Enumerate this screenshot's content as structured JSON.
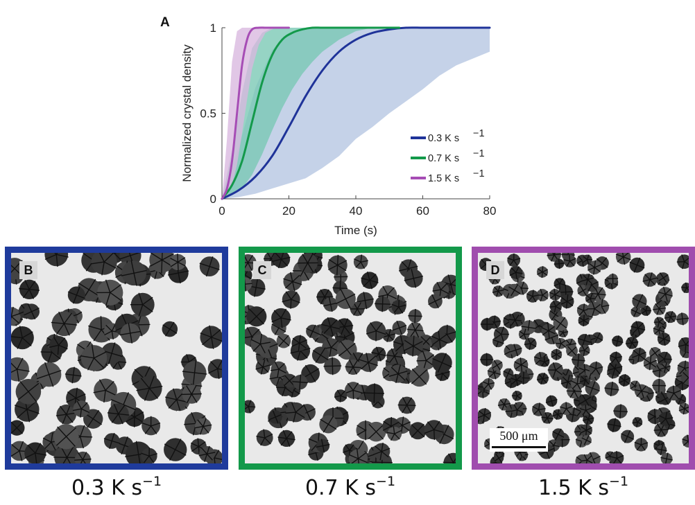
{
  "chart_data": {
    "type": "line",
    "panel_letter": "A",
    "xlabel": "Time (s)",
    "ylabel": "Normalized crystal density",
    "xlim": [
      0,
      80
    ],
    "ylim": [
      0,
      1
    ],
    "xticks": [
      0,
      20,
      40,
      60,
      80
    ],
    "yticks": [
      0,
      0.5,
      1
    ],
    "xtick_labels": [
      "0",
      "20",
      "40",
      "60",
      "80"
    ],
    "ytick_labels": [
      "0",
      "0.5",
      "1"
    ],
    "legend_position": "bottom-right",
    "series": [
      {
        "name": "0.3 K s-1",
        "legend_label": "0.3 K s",
        "legend_exp": "−1",
        "color": "#1f3399",
        "band_color": "#b5c5e2",
        "x": [
          0,
          5,
          10,
          15,
          20,
          25,
          30,
          35,
          40,
          45,
          50,
          55,
          60,
          65,
          70,
          75,
          80
        ],
        "y": [
          0,
          0.05,
          0.13,
          0.25,
          0.42,
          0.6,
          0.75,
          0.86,
          0.93,
          0.97,
          0.99,
          1,
          1,
          1,
          1,
          1,
          1
        ],
        "lower": [
          0,
          0.01,
          0.03,
          0.06,
          0.09,
          0.12,
          0.18,
          0.25,
          0.35,
          0.42,
          0.5,
          0.57,
          0.64,
          0.72,
          0.78,
          0.82,
          0.86
        ],
        "upper": [
          0,
          0.3,
          0.65,
          0.87,
          0.96,
          1,
          1,
          1,
          1,
          1,
          1,
          1,
          1,
          1,
          1,
          1,
          1
        ]
      },
      {
        "name": "0.7 K s-1",
        "legend_label": "0.7 K s",
        "legend_exp": "−1",
        "color": "#13994a",
        "band_color": "#79c8b3",
        "x": [
          0,
          3,
          6,
          9,
          12,
          15,
          18,
          21,
          24,
          27,
          30,
          35,
          40,
          45,
          53
        ],
        "y": [
          0,
          0.08,
          0.22,
          0.45,
          0.68,
          0.84,
          0.93,
          0.97,
          0.99,
          1,
          1,
          1,
          1,
          1,
          1
        ],
        "lower": [
          0,
          0.02,
          0.06,
          0.14,
          0.26,
          0.4,
          0.53,
          0.64,
          0.73,
          0.8,
          0.86,
          0.93,
          0.98,
          1,
          1
        ],
        "upper": [
          0,
          0.28,
          0.62,
          0.88,
          0.97,
          1,
          1,
          1,
          1,
          1,
          1,
          1,
          1,
          1,
          1
        ]
      },
      {
        "name": "1.5 K s-1",
        "legend_label": "1.5 K s",
        "legend_exp": "−1",
        "color": "#a64db5",
        "band_color": "#d9b7df",
        "x": [
          0,
          1.5,
          3,
          4.5,
          6,
          7.5,
          9,
          11,
          13,
          16,
          20
        ],
        "y": [
          0,
          0.06,
          0.22,
          0.5,
          0.78,
          0.93,
          0.99,
          1,
          1,
          1,
          1
        ],
        "lower": [
          0,
          0.02,
          0.08,
          0.2,
          0.38,
          0.58,
          0.76,
          0.9,
          0.97,
          1,
          1
        ],
        "upper": [
          0,
          0.35,
          0.8,
          0.98,
          1,
          1,
          1,
          1,
          1,
          1,
          1
        ]
      }
    ]
  },
  "panels": [
    {
      "letter": "B",
      "caption_value": "0.3 K s",
      "caption_exp": "−1",
      "border_color": "#1f3b9c"
    },
    {
      "letter": "C",
      "caption_value": "0.7 K s",
      "caption_exp": "−1",
      "border_color": "#13994a"
    },
    {
      "letter": "D",
      "caption_value": "1.5 K s",
      "caption_exp": "−1",
      "border_color": "#a04dae",
      "scale_bar_label": "500 μm"
    }
  ]
}
